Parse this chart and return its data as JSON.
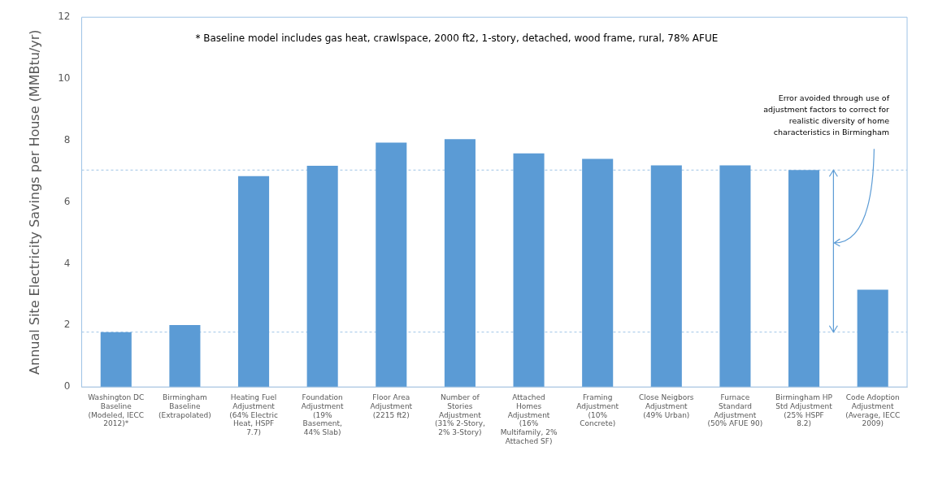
{
  "chart_data": {
    "type": "bar",
    "ylabel": "Annual Site Electricity Savings per House (MMBtu/yr)",
    "categories": [
      "Washington DC Baseline (Modeled, IECC 2012)*",
      "Birmingham Baseline (Extrapolated)",
      "Heating Fuel Adjustment (64% Electric Heat, HSPF 7.7)",
      "Foundation Adjustment (19% Basement, 44% Slab)",
      "Floor Area Adjustment (2215 ft2)",
      "Number of Stories Adjustment (31% 2-Story, 2% 3-Story)",
      "Attached Homes Adjustment (16% Multifamily, 2% Attached SF)",
      "Framing Adjustment (10% Concrete)",
      "Close Neigbors Adjustment (49% Urban)",
      "Furnace Standard Adjustment (50% AFUE 90)",
      "Birmingham HP Std Adjustment (25% HSPF 8.2)",
      "Code Adoption Adjustment (Average, IECC 2009)"
    ],
    "values": [
      1.78,
      2.01,
      6.84,
      7.18,
      7.93,
      8.04,
      7.58,
      7.4,
      7.19,
      7.19,
      7.04,
      3.16
    ],
    "color": "#5b9bd5",
    "ylim": [
      0,
      12
    ],
    "yticks": [
      0,
      2,
      4,
      6,
      8,
      10,
      12
    ],
    "grid": false,
    "ref_lines": [
      {
        "axis": "y",
        "value": 1.78,
        "color": "#9dc3e6",
        "line_style": "dashed"
      },
      {
        "axis": "y",
        "value": 7.04,
        "color": "#9dc3e6",
        "line_style": "dashed"
      }
    ],
    "annotations": [
      "* Baseline model includes gas heat, crawlspace, 2000 ft2, 1-story, detached, wood frame, rural, 78% AFUE",
      "Error avoided through use of adjustment factors to correct for realistic diversity of home characteristics in Birmingham"
    ]
  }
}
